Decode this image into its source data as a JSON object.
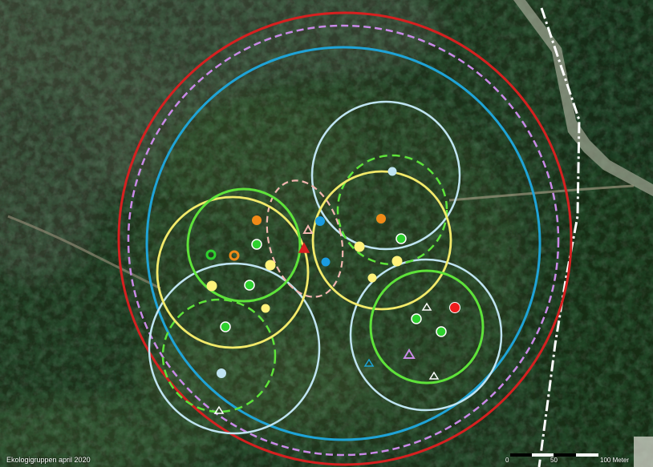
{
  "map": {
    "credit": "Ekologigruppen april 2020",
    "scale": {
      "ticks": [
        "0",
        "50",
        "100 Meter"
      ]
    },
    "colors": {
      "red": "#d62020",
      "lilac_dashed": "#c98ae8",
      "blue": "#1fa3d6",
      "light_blue": "#bfe4f2",
      "bright_green": "#5ee33a",
      "yellow": "#f2ea6a",
      "pink_dashed": "#f2b6b0",
      "orange": "#f08a18",
      "dot_green": "#2ed12e",
      "dot_yellow": "#fff27a",
      "dot_red": "#ee1c1c",
      "dot_blue": "#1a9ce0",
      "road_line": "#ffffff"
    }
  }
}
